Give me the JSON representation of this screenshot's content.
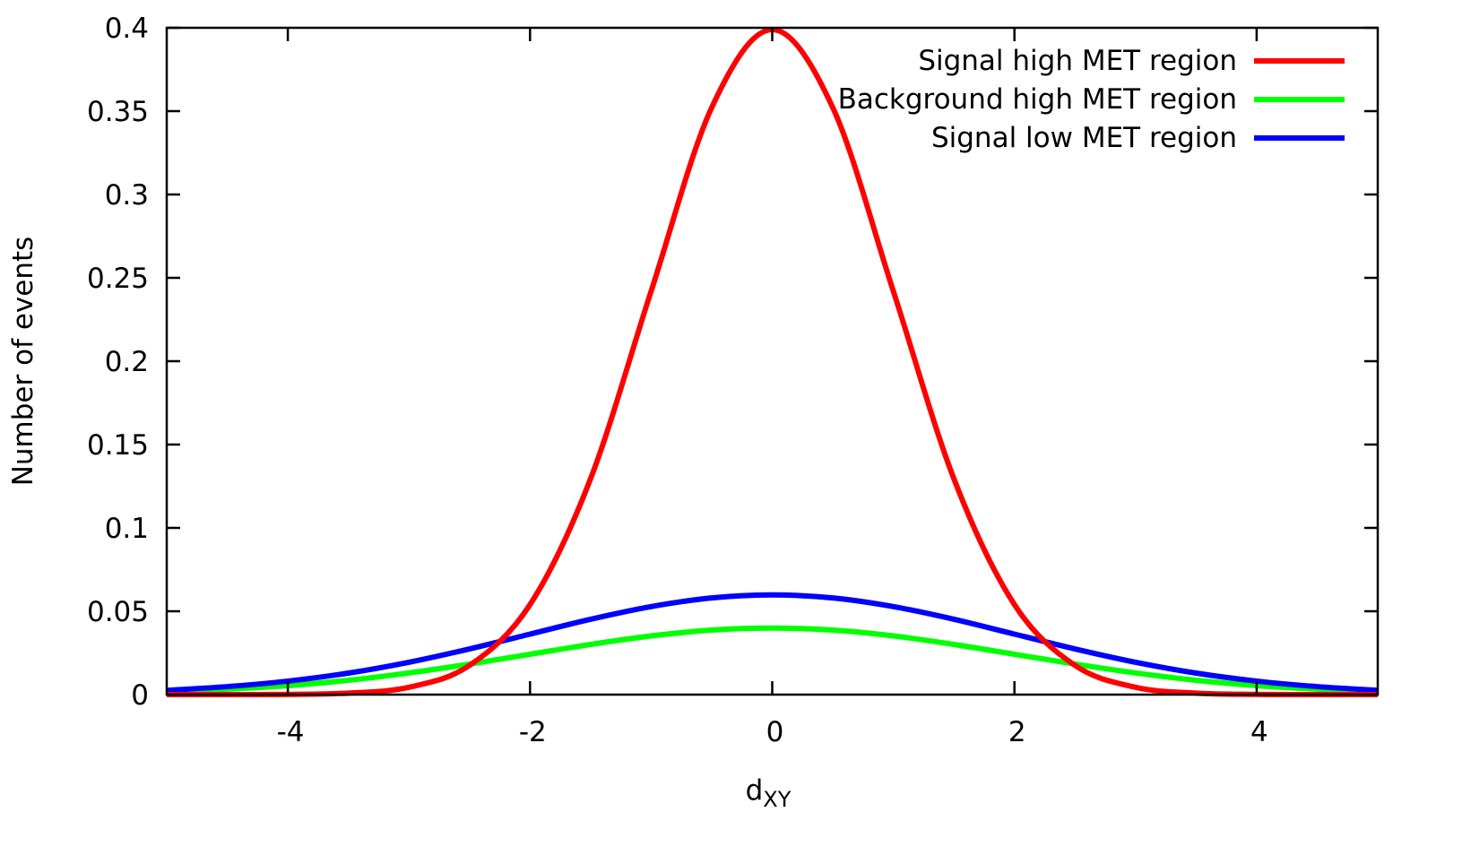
{
  "chart_data": {
    "type": "line",
    "title": "",
    "xlabel": "d",
    "xlabel_subscript": "XY",
    "ylabel": "Number of events",
    "xlim": [
      -5,
      5
    ],
    "ylim": [
      0,
      0.4
    ],
    "x_ticks": [
      -4,
      -2,
      0,
      2,
      4
    ],
    "x_tick_labels": [
      "-4",
      "-2",
      "0",
      "2",
      "4"
    ],
    "y_ticks": [
      0,
      0.05,
      0.1,
      0.15,
      0.2,
      0.25,
      0.3,
      0.35,
      0.4
    ],
    "y_tick_labels": [
      "0",
      "0.05",
      "0.1",
      "0.15",
      "0.2",
      "0.25",
      "0.3",
      "0.35",
      "0.4"
    ],
    "grid": false,
    "legend_position": "top-right",
    "x": [
      -5,
      -4.5,
      -4,
      -3.5,
      -3,
      -2.5,
      -2,
      -1.5,
      -1,
      -0.5,
      0,
      0.5,
      1,
      1.5,
      2,
      2.5,
      3,
      3.5,
      4,
      4.5,
      5
    ],
    "series": [
      {
        "name": "Signal high MET region",
        "color": "#ff0000",
        "values": [
          0.0,
          0.0,
          0.0001,
          0.0009,
          0.0044,
          0.0175,
          0.054,
          0.1295,
          0.242,
          0.3521,
          0.3989,
          0.3521,
          0.242,
          0.1295,
          0.054,
          0.0175,
          0.0044,
          0.0009,
          0.0001,
          0.0,
          0.0
        ]
      },
      {
        "name": "Background high MET region",
        "color": "#00ff00",
        "values": [
          0.0018,
          0.0033,
          0.0054,
          0.0086,
          0.013,
          0.0183,
          0.0242,
          0.0301,
          0.0352,
          0.0387,
          0.0399,
          0.0387,
          0.0352,
          0.0301,
          0.0242,
          0.0183,
          0.013,
          0.0086,
          0.0054,
          0.0033,
          0.0018
        ]
      },
      {
        "name": "Signal low MET region",
        "color": "#0000ff",
        "values": [
          0.0026,
          0.0048,
          0.0081,
          0.0129,
          0.0194,
          0.0274,
          0.0363,
          0.0452,
          0.0528,
          0.058,
          0.0598,
          0.058,
          0.0528,
          0.0452,
          0.0363,
          0.0274,
          0.0194,
          0.0129,
          0.0081,
          0.0048,
          0.0026
        ]
      }
    ]
  }
}
